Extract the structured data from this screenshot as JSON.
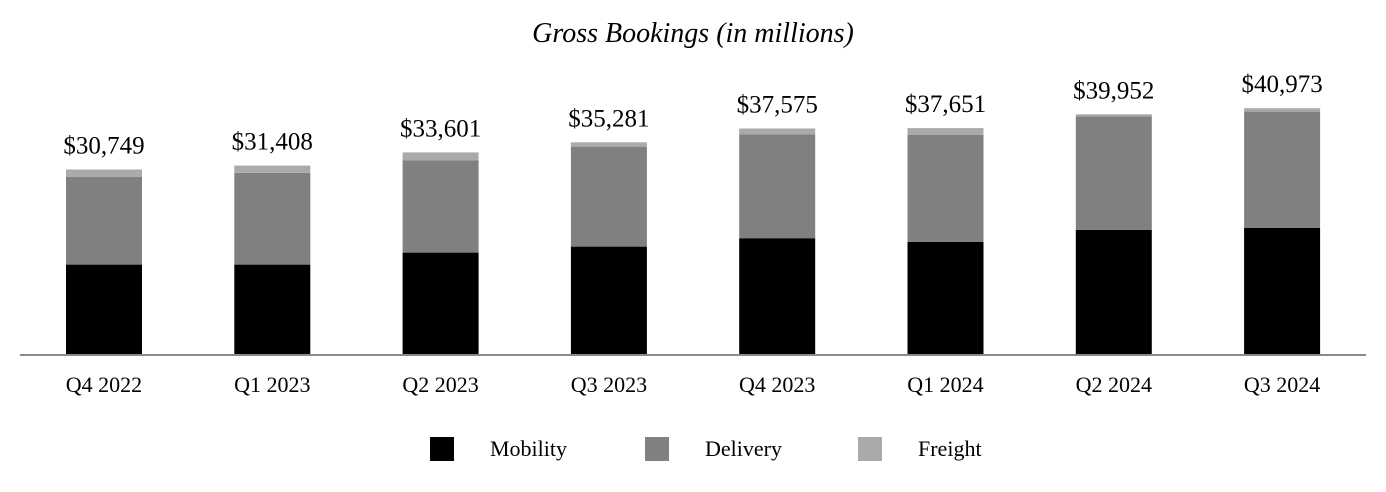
{
  "chart_data": {
    "type": "bar",
    "stacked": true,
    "title": "Gross Bookings (in millions)",
    "xlabel": "",
    "ylabel": "",
    "ylim": [
      0,
      44000
    ],
    "grid": false,
    "legend_position": "bottom-center",
    "categories": [
      "Q4 2022",
      "Q1 2023",
      "Q2 2023",
      "Q3 2023",
      "Q4 2023",
      "Q1 2024",
      "Q2 2024",
      "Q3 2024"
    ],
    "totals": [
      30749,
      31408,
      33601,
      35281,
      37575,
      37651,
      39952,
      40973
    ],
    "total_labels": [
      "$30,749",
      "$31,408",
      "$33,601",
      "$35,281",
      "$37,575",
      "$37,651",
      "$39,952",
      "$40,973"
    ],
    "series": [
      {
        "name": "Mobility",
        "color": "#000000",
        "values": [
          14900,
          14900,
          16900,
          17900,
          19300,
          18700,
          20700,
          21000
        ]
      },
      {
        "name": "Delivery",
        "color": "#808080",
        "values": [
          14600,
          15300,
          15400,
          16600,
          17300,
          17800,
          18900,
          19400
        ]
      },
      {
        "name": "Freight",
        "color": "#aaaaaa",
        "values": [
          1249,
          1208,
          1301,
          781,
          975,
          1151,
          352,
          573
        ]
      }
    ]
  }
}
